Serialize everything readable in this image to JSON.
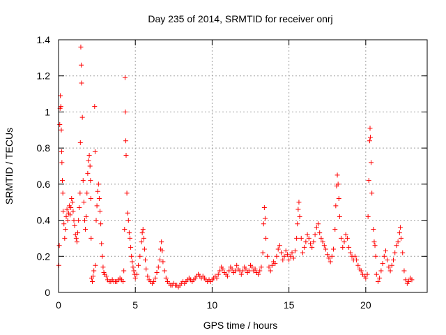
{
  "chart_data": {
    "type": "scatter",
    "title": "Day 235 of 2014, SRMTID for receiver onrj",
    "xlabel": "GPS time / hours",
    "ylabel": "SRMTID / TECUs",
    "xlim": [
      0,
      24
    ],
    "ylim": [
      0,
      1.4
    ],
    "x_ticks": [
      0,
      5,
      10,
      15,
      20
    ],
    "x_tick_labels": [
      "0",
      "5",
      "10",
      "15",
      "20"
    ],
    "y_ticks": [
      0,
      0.2,
      0.4,
      0.6,
      0.8,
      1,
      1.2,
      1.4
    ],
    "y_tick_labels": [
      "0",
      "0.2",
      "0.4",
      "0.6",
      "0.8",
      "1",
      "1.2",
      "1.4"
    ],
    "grid": true,
    "marker": "+",
    "series": [
      {
        "name": "SRMTID",
        "color": "#ff0000",
        "points": [
          [
            0.02,
            0.15
          ],
          [
            0.05,
            0.26
          ],
          [
            0.08,
            0.93
          ],
          [
            0.1,
            1.02
          ],
          [
            0.12,
            1.09
          ],
          [
            0.15,
            1.03
          ],
          [
            0.18,
            0.9
          ],
          [
            0.2,
            0.78
          ],
          [
            0.22,
            0.72
          ],
          [
            0.25,
            0.62
          ],
          [
            0.28,
            0.55
          ],
          [
            0.3,
            0.45
          ],
          [
            0.35,
            0.38
          ],
          [
            0.4,
            0.3
          ],
          [
            0.45,
            0.35
          ],
          [
            0.5,
            0.42
          ],
          [
            0.55,
            0.46
          ],
          [
            0.6,
            0.4
          ],
          [
            0.65,
            0.44
          ],
          [
            0.7,
            0.48
          ],
          [
            0.75,
            0.43
          ],
          [
            0.8,
            0.47
          ],
          [
            0.85,
            0.52
          ],
          [
            0.9,
            0.5
          ],
          [
            0.95,
            0.45
          ],
          [
            1.0,
            0.4
          ],
          [
            1.05,
            0.37
          ],
          [
            1.1,
            0.32
          ],
          [
            1.15,
            0.3
          ],
          [
            1.2,
            0.28
          ],
          [
            1.25,
            0.33
          ],
          [
            1.3,
            0.4
          ],
          [
            1.35,
            0.47
          ],
          [
            1.4,
            0.55
          ],
          [
            1.42,
            0.83
          ],
          [
            1.45,
            1.36
          ],
          [
            1.48,
            1.26
          ],
          [
            1.5,
            1.16
          ],
          [
            1.55,
            0.97
          ],
          [
            1.6,
            0.62
          ],
          [
            1.65,
            0.5
          ],
          [
            1.7,
            0.4
          ],
          [
            1.75,
            0.35
          ],
          [
            1.8,
            0.42
          ],
          [
            1.85,
            0.55
          ],
          [
            1.9,
            0.66
          ],
          [
            1.95,
            0.73
          ],
          [
            2.0,
            0.76
          ],
          [
            2.05,
            0.7
          ],
          [
            2.08,
            0.62
          ],
          [
            2.1,
            0.52
          ],
          [
            2.12,
            0.3
          ],
          [
            2.15,
            0.08
          ],
          [
            2.2,
            0.06
          ],
          [
            2.25,
            0.09
          ],
          [
            2.3,
            0.12
          ],
          [
            2.35,
            1.03
          ],
          [
            2.38,
            0.78
          ],
          [
            2.4,
            0.15
          ],
          [
            2.45,
            0.4
          ],
          [
            2.5,
            0.48
          ],
          [
            2.55,
            0.56
          ],
          [
            2.6,
            0.6
          ],
          [
            2.65,
            0.52
          ],
          [
            2.7,
            0.45
          ],
          [
            2.75,
            0.38
          ],
          [
            2.8,
            0.27
          ],
          [
            2.85,
            0.2
          ],
          [
            2.9,
            0.14
          ],
          [
            2.95,
            0.11
          ],
          [
            3.0,
            0.1
          ],
          [
            3.1,
            0.09
          ],
          [
            3.2,
            0.07
          ],
          [
            3.3,
            0.06
          ],
          [
            3.4,
            0.06
          ],
          [
            3.5,
            0.07
          ],
          [
            3.6,
            0.06
          ],
          [
            3.7,
            0.06
          ],
          [
            3.8,
            0.06
          ],
          [
            3.9,
            0.07
          ],
          [
            4.0,
            0.08
          ],
          [
            4.1,
            0.07
          ],
          [
            4.2,
            0.06
          ],
          [
            4.25,
            0.12
          ],
          [
            4.3,
            0.35
          ],
          [
            4.33,
            1.19
          ],
          [
            4.35,
            1.0
          ],
          [
            4.38,
            0.84
          ],
          [
            4.4,
            0.76
          ],
          [
            4.45,
            0.55
          ],
          [
            4.5,
            0.44
          ],
          [
            4.55,
            0.4
          ],
          [
            4.6,
            0.33
          ],
          [
            4.65,
            0.3
          ],
          [
            4.7,
            0.25
          ],
          [
            4.75,
            0.2
          ],
          [
            4.8,
            0.17
          ],
          [
            4.85,
            0.14
          ],
          [
            4.9,
            0.12
          ],
          [
            4.95,
            0.1
          ],
          [
            5.0,
            0.08
          ],
          [
            5.1,
            0.1
          ],
          [
            5.2,
            0.15
          ],
          [
            5.3,
            0.2
          ],
          [
            5.4,
            0.28
          ],
          [
            5.45,
            0.33
          ],
          [
            5.5,
            0.35
          ],
          [
            5.55,
            0.3
          ],
          [
            5.6,
            0.24
          ],
          [
            5.65,
            0.18
          ],
          [
            5.7,
            0.13
          ],
          [
            5.8,
            0.09
          ],
          [
            5.9,
            0.07
          ],
          [
            6.0,
            0.06
          ],
          [
            6.1,
            0.05
          ],
          [
            6.2,
            0.06
          ],
          [
            6.3,
            0.08
          ],
          [
            6.4,
            0.11
          ],
          [
            6.5,
            0.14
          ],
          [
            6.6,
            0.18
          ],
          [
            6.65,
            0.24
          ],
          [
            6.7,
            0.28
          ],
          [
            6.75,
            0.23
          ],
          [
            6.8,
            0.17
          ],
          [
            6.9,
            0.12
          ],
          [
            7.0,
            0.08
          ],
          [
            7.1,
            0.06
          ],
          [
            7.2,
            0.05
          ],
          [
            7.3,
            0.04
          ],
          [
            7.4,
            0.04
          ],
          [
            7.5,
            0.05
          ],
          [
            7.6,
            0.04
          ],
          [
            7.7,
            0.04
          ],
          [
            7.8,
            0.03
          ],
          [
            7.9,
            0.04
          ],
          [
            8.0,
            0.05
          ],
          [
            8.1,
            0.06
          ],
          [
            8.2,
            0.05
          ],
          [
            8.3,
            0.06
          ],
          [
            8.4,
            0.07
          ],
          [
            8.5,
            0.08
          ],
          [
            8.6,
            0.07
          ],
          [
            8.7,
            0.06
          ],
          [
            8.8,
            0.07
          ],
          [
            8.9,
            0.08
          ],
          [
            9.0,
            0.09
          ],
          [
            9.1,
            0.1
          ],
          [
            9.2,
            0.09
          ],
          [
            9.3,
            0.08
          ],
          [
            9.4,
            0.09
          ],
          [
            9.5,
            0.08
          ],
          [
            9.6,
            0.07
          ],
          [
            9.7,
            0.06
          ],
          [
            9.8,
            0.07
          ],
          [
            9.9,
            0.06
          ],
          [
            10.0,
            0.07
          ],
          [
            10.1,
            0.08
          ],
          [
            10.2,
            0.09
          ],
          [
            10.3,
            0.08
          ],
          [
            10.4,
            0.1
          ],
          [
            10.5,
            0.12
          ],
          [
            10.6,
            0.14
          ],
          [
            10.7,
            0.13
          ],
          [
            10.8,
            0.11
          ],
          [
            10.9,
            0.1
          ],
          [
            11.0,
            0.09
          ],
          [
            11.1,
            0.12
          ],
          [
            11.2,
            0.14
          ],
          [
            11.3,
            0.13
          ],
          [
            11.4,
            0.11
          ],
          [
            11.5,
            0.12
          ],
          [
            11.6,
            0.15
          ],
          [
            11.7,
            0.13
          ],
          [
            11.8,
            0.12
          ],
          [
            11.9,
            0.1
          ],
          [
            12.0,
            0.12
          ],
          [
            12.1,
            0.14
          ],
          [
            12.2,
            0.13
          ],
          [
            12.3,
            0.11
          ],
          [
            12.4,
            0.12
          ],
          [
            12.5,
            0.15
          ],
          [
            12.6,
            0.14
          ],
          [
            12.7,
            0.12
          ],
          [
            12.8,
            0.13
          ],
          [
            12.9,
            0.11
          ],
          [
            13.0,
            0.1
          ],
          [
            13.1,
            0.12
          ],
          [
            13.2,
            0.14
          ],
          [
            13.3,
            0.22
          ],
          [
            13.35,
            0.38
          ],
          [
            13.4,
            0.47
          ],
          [
            13.45,
            0.41
          ],
          [
            13.5,
            0.3
          ],
          [
            13.6,
            0.2
          ],
          [
            13.7,
            0.14
          ],
          [
            13.8,
            0.12
          ],
          [
            13.9,
            0.15
          ],
          [
            14.0,
            0.17
          ],
          [
            14.1,
            0.16
          ],
          [
            14.2,
            0.2
          ],
          [
            14.3,
            0.24
          ],
          [
            14.4,
            0.26
          ],
          [
            14.5,
            0.22
          ],
          [
            14.6,
            0.18
          ],
          [
            14.7,
            0.2
          ],
          [
            14.8,
            0.23
          ],
          [
            14.9,
            0.21
          ],
          [
            15.0,
            0.18
          ],
          [
            15.1,
            0.2
          ],
          [
            15.2,
            0.22
          ],
          [
            15.3,
            0.19
          ],
          [
            15.4,
            0.23
          ],
          [
            15.5,
            0.3
          ],
          [
            15.55,
            0.38
          ],
          [
            15.6,
            0.46
          ],
          [
            15.65,
            0.5
          ],
          [
            15.7,
            0.42
          ],
          [
            15.8,
            0.3
          ],
          [
            15.9,
            0.22
          ],
          [
            16.0,
            0.25
          ],
          [
            16.1,
            0.28
          ],
          [
            16.2,
            0.32
          ],
          [
            16.3,
            0.3
          ],
          [
            16.4,
            0.27
          ],
          [
            16.5,
            0.25
          ],
          [
            16.6,
            0.28
          ],
          [
            16.7,
            0.32
          ],
          [
            16.8,
            0.36
          ],
          [
            16.9,
            0.38
          ],
          [
            17.0,
            0.33
          ],
          [
            17.1,
            0.3
          ],
          [
            17.2,
            0.28
          ],
          [
            17.3,
            0.26
          ],
          [
            17.4,
            0.24
          ],
          [
            17.5,
            0.21
          ],
          [
            17.6,
            0.19
          ],
          [
            17.7,
            0.17
          ],
          [
            17.8,
            0.2
          ],
          [
            17.9,
            0.24
          ],
          [
            18.0,
            0.35
          ],
          [
            18.05,
            0.48
          ],
          [
            18.1,
            0.59
          ],
          [
            18.15,
            0.65
          ],
          [
            18.2,
            0.6
          ],
          [
            18.25,
            0.52
          ],
          [
            18.3,
            0.42
          ],
          [
            18.4,
            0.3
          ],
          [
            18.5,
            0.25
          ],
          [
            18.6,
            0.28
          ],
          [
            18.7,
            0.32
          ],
          [
            18.8,
            0.3
          ],
          [
            18.9,
            0.25
          ],
          [
            19.0,
            0.22
          ],
          [
            19.1,
            0.2
          ],
          [
            19.2,
            0.18
          ],
          [
            19.3,
            0.2
          ],
          [
            19.4,
            0.18
          ],
          [
            19.5,
            0.15
          ],
          [
            19.6,
            0.13
          ],
          [
            19.7,
            0.12
          ],
          [
            19.8,
            0.1
          ],
          [
            19.9,
            0.09
          ],
          [
            20.0,
            0.08
          ],
          [
            20.1,
            0.1
          ],
          [
            20.15,
            0.42
          ],
          [
            20.2,
            0.62
          ],
          [
            20.25,
            0.84
          ],
          [
            20.28,
            0.91
          ],
          [
            20.3,
            0.86
          ],
          [
            20.35,
            0.72
          ],
          [
            20.4,
            0.55
          ],
          [
            20.5,
            0.35
          ],
          [
            20.55,
            0.28
          ],
          [
            20.6,
            0.26
          ],
          [
            20.65,
            0.2
          ],
          [
            20.7,
            0.1
          ],
          [
            20.8,
            0.06
          ],
          [
            20.9,
            0.08
          ],
          [
            21.0,
            0.12
          ],
          [
            21.1,
            0.16
          ],
          [
            21.2,
            0.2
          ],
          [
            21.3,
            0.23
          ],
          [
            21.4,
            0.18
          ],
          [
            21.5,
            0.14
          ],
          [
            21.6,
            0.12
          ],
          [
            21.7,
            0.15
          ],
          [
            21.8,
            0.18
          ],
          [
            21.9,
            0.22
          ],
          [
            22.0,
            0.26
          ],
          [
            22.1,
            0.28
          ],
          [
            22.2,
            0.33
          ],
          [
            22.25,
            0.36
          ],
          [
            22.3,
            0.3
          ],
          [
            22.4,
            0.22
          ],
          [
            22.5,
            0.12
          ],
          [
            22.6,
            0.07
          ],
          [
            22.7,
            0.05
          ],
          [
            22.8,
            0.06
          ],
          [
            22.9,
            0.08
          ],
          [
            23.0,
            0.07
          ]
        ]
      }
    ]
  }
}
